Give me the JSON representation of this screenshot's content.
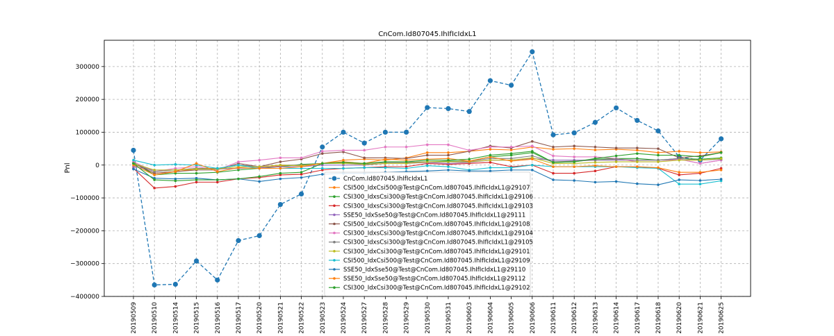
{
  "chart_data": {
    "type": "line",
    "title": "CnCom.Id807045.IhIfIcIdxL1",
    "xlabel": "",
    "ylabel": "Pnl",
    "ylim": [
      -400000,
      380000
    ],
    "yticks": [
      -400000,
      -300000,
      -200000,
      -100000,
      0,
      100000,
      200000,
      300000
    ],
    "ytick_labels": [
      "−400000",
      "−300000",
      "−200000",
      "−100000",
      "0",
      "100000",
      "200000",
      "300000"
    ],
    "grid": true,
    "legend_position": "lower-center",
    "categories": [
      "20190509",
      "20190510",
      "20190514",
      "20190515",
      "20190516",
      "20190517",
      "20190520",
      "20190521",
      "20190522",
      "20190523",
      "20190524",
      "20190527",
      "20190528",
      "20190529",
      "20190530",
      "20190531",
      "20190603",
      "20190604",
      "20190605",
      "20190606",
      "20190611",
      "20190612",
      "20190613",
      "20190614",
      "20190617",
      "20190618",
      "20190620",
      "20190621",
      "20190625"
    ],
    "series": [
      {
        "name": "CnCom.Id807045.IhIfIcIdxL1",
        "color": "#1f77b4",
        "style": "main",
        "values": [
          45000,
          -365000,
          -363000,
          -292000,
          -350000,
          -230000,
          -215000,
          -120000,
          -88000,
          55000,
          100000,
          67000,
          100000,
          100000,
          175000,
          172000,
          163000,
          257000,
          243000,
          345000,
          92000,
          98000,
          130000,
          174000,
          136000,
          104000,
          25000,
          15000,
          80000
        ]
      },
      {
        "name": "CSI500_IdxCsi500@Test@CnCom.Id807045.IhIfIcIdxL1@29107",
        "color": "#ff7f0e",
        "style": "sub",
        "values": [
          5000,
          -25000,
          -20000,
          -12000,
          -12000,
          -10000,
          -8000,
          -3000,
          0,
          5000,
          15000,
          18000,
          15000,
          22000,
          38000,
          38000,
          42000,
          48000,
          46000,
          55000,
          48000,
          50000,
          46000,
          48000,
          45000,
          38000,
          42000,
          38000,
          40000
        ]
      },
      {
        "name": "CSI300_IdxsCsi300@Test@CnCom.Id807045.IhIfIcIdxL1@29106",
        "color": "#2ca02c",
        "style": "sub",
        "values": [
          8000,
          -30000,
          -25000,
          -25000,
          -22000,
          -15000,
          -10000,
          -5000,
          2000,
          5000,
          5000,
          5000,
          8000,
          8000,
          10000,
          12000,
          12000,
          25000,
          30000,
          38000,
          8000,
          10000,
          18000,
          20000,
          20000,
          15000,
          20000,
          18000,
          22000
        ]
      },
      {
        "name": "CSI300_IdxsCsi300@Test@CnCom.Id807045.IhIfIcIdxL1@29103",
        "color": "#d62728",
        "style": "sub",
        "values": [
          -10000,
          -70000,
          -65000,
          -52000,
          -52000,
          -42000,
          -38000,
          -30000,
          -28000,
          -15000,
          -10000,
          -8000,
          -5000,
          -5000,
          5000,
          2000,
          5000,
          8000,
          -5000,
          0,
          -25000,
          -25000,
          -18000,
          -5000,
          -5000,
          -10000,
          -30000,
          -25000,
          -10000
        ]
      },
      {
        "name": "SSE50_IdxSse50@Test@CnCom.Id807045.IhIfIcIdxL1@29111",
        "color": "#9467bd",
        "style": "sub",
        "values": [
          -5000,
          -15000,
          -15000,
          -10000,
          -12000,
          -10000,
          -8000,
          -5000,
          -5000,
          0,
          0,
          0,
          5000,
          5000,
          8000,
          5000,
          8000,
          15000,
          15000,
          20000,
          15000,
          15000,
          15000,
          15000,
          15000,
          15000,
          18000,
          5000,
          15000
        ]
      },
      {
        "name": "CSI500_IdxCsi500@Test@CnCom.Id807045.IhIfIcIdxL1@29108",
        "color": "#8c564b",
        "style": "sub",
        "values": [
          5000,
          -25000,
          -20000,
          -15000,
          -15000,
          5000,
          -5000,
          10000,
          18000,
          35000,
          40000,
          22000,
          22000,
          20000,
          30000,
          30000,
          42000,
          58000,
          52000,
          72000,
          55000,
          58000,
          55000,
          52000,
          52000,
          50000,
          22000,
          28000,
          38000
        ]
      },
      {
        "name": "CSI300_IdxsCsi300@Test@CnCom.Id807045.IhIfIcIdxL1@29104",
        "color": "#e377c2",
        "style": "sub",
        "values": [
          10000,
          -20000,
          -10000,
          -5000,
          -15000,
          10000,
          15000,
          22000,
          22000,
          42000,
          45000,
          45000,
          55000,
          55000,
          62000,
          62000,
          45000,
          55000,
          55000,
          58000,
          28000,
          25000,
          25000,
          20000,
          10000,
          10000,
          18000,
          5000,
          15000
        ]
      },
      {
        "name": "CSI300_IdxsCsi300@Test@CnCom.Id807045.IhIfIcIdxL1@29105",
        "color": "#7f7f7f",
        "style": "sub",
        "values": [
          5000,
          -20000,
          -15000,
          -10000,
          -10000,
          0,
          -5000,
          0,
          0,
          5000,
          5000,
          5000,
          8000,
          8000,
          10000,
          10000,
          12000,
          20000,
          20000,
          28000,
          10000,
          12000,
          15000,
          18000,
          15000,
          15000,
          20000,
          15000,
          18000
        ]
      },
      {
        "name": "CSI300_IdxCsi300@Test@CnCom.Id807045.IhIfIcIdxL1@29101",
        "color": "#bcbd22",
        "style": "sub",
        "values": [
          5000,
          -15000,
          -15000,
          -12000,
          -12000,
          -5000,
          -5000,
          0,
          -2000,
          5000,
          5000,
          2000,
          5000,
          5000,
          10000,
          10000,
          10000,
          15000,
          15000,
          22000,
          5000,
          5000,
          8000,
          10000,
          10000,
          10000,
          15000,
          15000,
          20000
        ]
      },
      {
        "name": "CSI500_IdxCsi500@Test@CnCom.Id807045.IhIfIcIdxL1@29109",
        "color": "#17becf",
        "style": "sub",
        "values": [
          15000,
          0,
          2000,
          0,
          -10000,
          0,
          -10000,
          -10000,
          -10000,
          -10000,
          -10000,
          -8000,
          -8000,
          -10000,
          -2000,
          -5000,
          -15000,
          -8000,
          -8000,
          0,
          -5000,
          -5000,
          -5000,
          -5000,
          -8000,
          -10000,
          -58000,
          -58000,
          -48000
        ]
      },
      {
        "name": "SSE50_IdxSse50@Test@CnCom.Id807045.IhIfIcIdxL1@29110",
        "color": "#1f77b4",
        "style": "sub",
        "values": [
          -12000,
          -40000,
          -42000,
          -40000,
          -45000,
          -42000,
          -50000,
          -42000,
          -38000,
          -28000,
          -25000,
          -25000,
          -22000,
          -20000,
          -18000,
          -15000,
          -18000,
          -18000,
          -15000,
          -15000,
          -45000,
          -47000,
          -52000,
          -50000,
          -57000,
          -60000,
          -45000,
          -47000,
          -43000
        ]
      },
      {
        "name": "SSE50_IdxSse50@Test@CnCom.Id807045.IhIfIcIdxL1@29112",
        "color": "#ff7f0e",
        "style": "sub",
        "values": [
          0,
          -30000,
          -20000,
          5000,
          -20000,
          -8000,
          -10000,
          -10000,
          -5000,
          5000,
          10000,
          5000,
          18000,
          15000,
          18000,
          20000,
          12000,
          25000,
          12000,
          18000,
          -5000,
          -5000,
          -2000,
          -5000,
          -5000,
          -8000,
          -22000,
          -22000,
          -15000
        ]
      },
      {
        "name": "CSI300_IdxCsi300@Test@CnCom.Id807045.IhIfIcIdxL1@29102",
        "color": "#2ca02c",
        "style": "sub",
        "values": [
          5000,
          -45000,
          -48000,
          -45000,
          -45000,
          -42000,
          -35000,
          -25000,
          -22000,
          5000,
          8000,
          5000,
          10000,
          10000,
          15000,
          15000,
          18000,
          30000,
          35000,
          42000,
          8000,
          10000,
          20000,
          28000,
          35000,
          30000,
          30000,
          25000,
          38000
        ]
      }
    ]
  }
}
